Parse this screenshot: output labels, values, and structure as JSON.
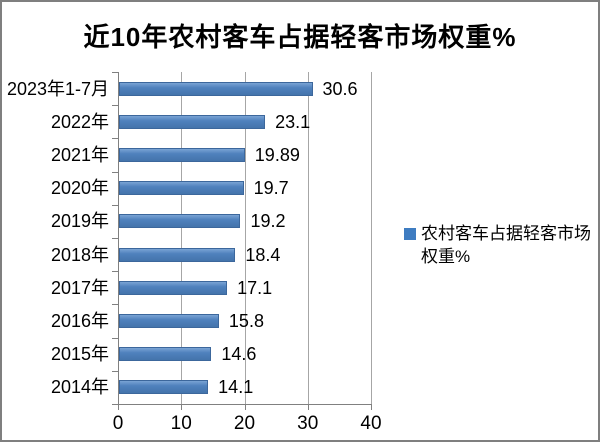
{
  "window": {
    "background": "#ffffff",
    "border_color": "#7f7f7f"
  },
  "chart_data": {
    "type": "bar",
    "orientation": "horizontal",
    "title": "近10年农村客车占据轻客市场权重%",
    "categories": [
      "2023年1-7月",
      "2022年",
      "2021年",
      "2020年",
      "2019年",
      "2018年",
      "2017年",
      "2016年",
      "2015年",
      "2014年"
    ],
    "series": [
      {
        "name": "农村客车占据轻客市场权重%",
        "values": [
          30.6,
          23.1,
          19.89,
          19.7,
          19.2,
          18.4,
          17.1,
          15.8,
          14.6,
          14.1
        ]
      }
    ],
    "data_labels": true,
    "xlabel": "",
    "ylabel": "",
    "xlim": [
      0,
      40
    ],
    "x_ticks": [
      0,
      10,
      20,
      30,
      40
    ],
    "grid": true,
    "legend_position": "right",
    "colors": {
      "bar": "#4f81bd",
      "gridline": "#a6a6a6",
      "axis": "#808080",
      "text": "#000000"
    }
  }
}
